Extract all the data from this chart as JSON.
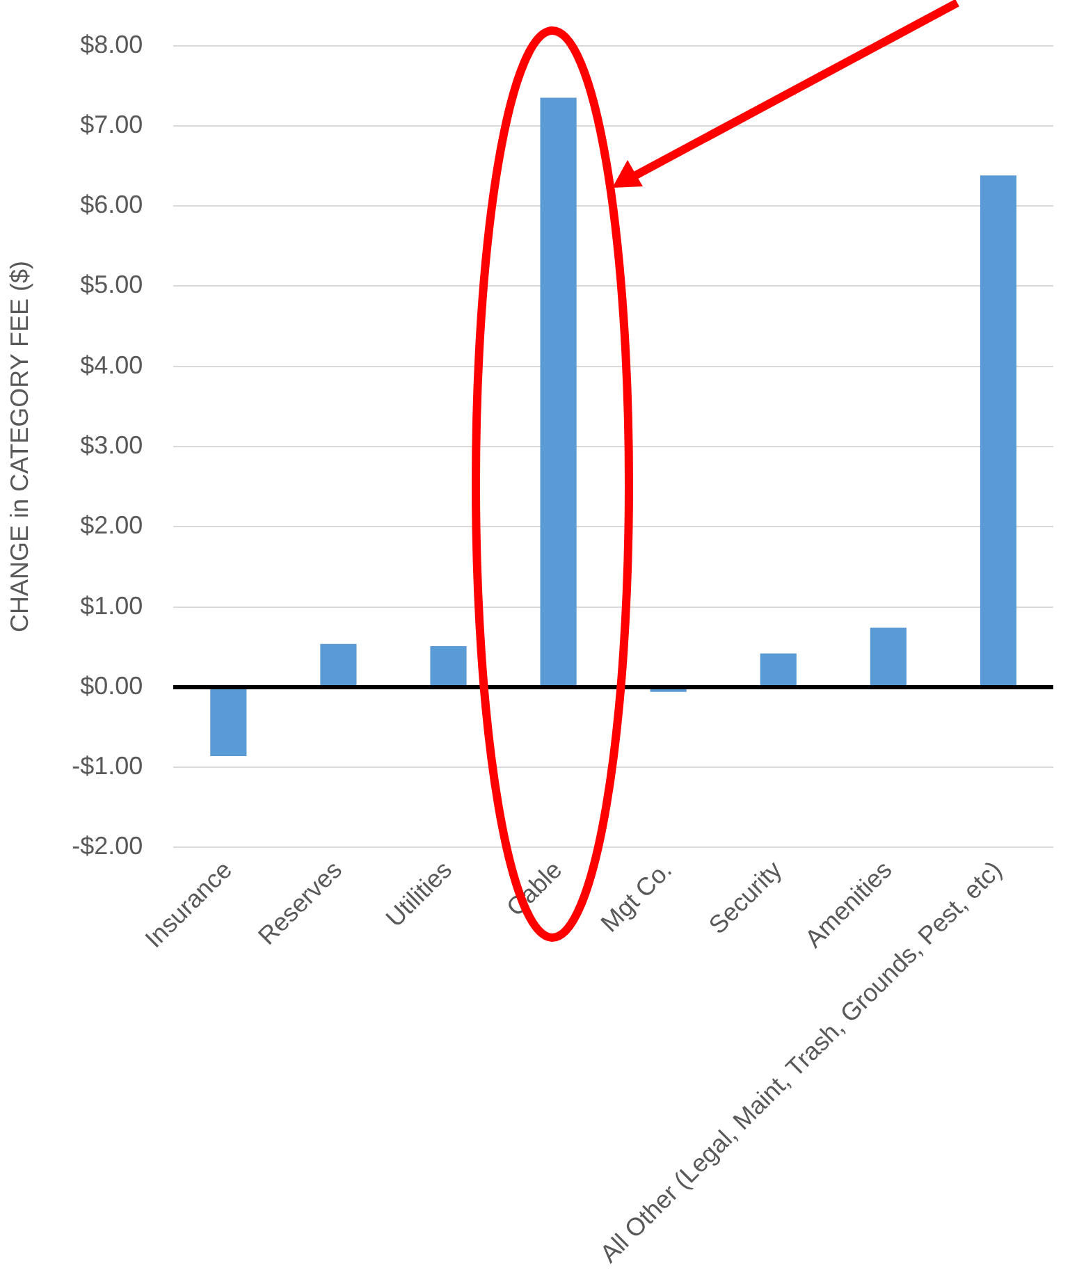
{
  "chart_data": {
    "type": "bar",
    "ylabel": "CHANGE in CATEGORY FEE ($)",
    "categories": [
      "Insurance",
      "Reserves",
      "Utilities",
      "Cable",
      "Mgt Co.",
      "Security",
      "Amenities",
      "All Other (Legal, Maint, Trash, Grounds, Pest, etc)"
    ],
    "values": [
      -0.86,
      0.54,
      0.51,
      7.35,
      -0.06,
      0.42,
      0.74,
      6.38
    ],
    "color": "#5b9bd5",
    "ylim": [
      -2,
      8
    ],
    "yticks": [
      {
        "value": -2,
        "label": "-$2.00"
      },
      {
        "value": -1,
        "label": "-$1.00"
      },
      {
        "value": 0,
        "label": "$0.00"
      },
      {
        "value": 1,
        "label": "$1.00"
      },
      {
        "value": 2,
        "label": "$2.00"
      },
      {
        "value": 3,
        "label": "$3.00"
      },
      {
        "value": 4,
        "label": "$4.00"
      },
      {
        "value": 5,
        "label": "$5.00"
      },
      {
        "value": 6,
        "label": "$6.00"
      },
      {
        "value": 7,
        "label": "$7.00"
      },
      {
        "value": 8,
        "label": "$8.00"
      }
    ],
    "grid": "y",
    "legend": false
  }
}
